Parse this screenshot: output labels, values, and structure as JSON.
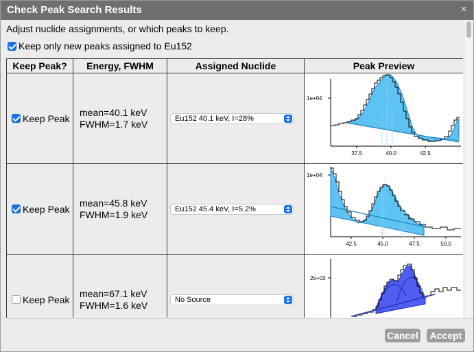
{
  "dialog": {
    "title": "Check Peak Search Results",
    "close_icon": "×",
    "instructions": "Adjust nuclide assignments, or which peaks to keep.",
    "keep_new_label": "Keep only new peaks assigned to Eu152",
    "keep_new_checked": true
  },
  "table": {
    "headers": [
      "Keep Peak?",
      "Energy, FWHM",
      "Assigned Nuclide",
      "Peak Preview"
    ],
    "rows": [
      {
        "keep_checked": true,
        "keep_label": "Keep Peak",
        "mean": "mean=40.1 keV",
        "fwhm": "FWHM=1.7 keV",
        "nuclide": "Eu152 40.1 keV, I=28%",
        "preview_ylabel": "1e+04",
        "preview_ticks": [
          "37.5",
          "40.0",
          "42.5"
        ]
      },
      {
        "keep_checked": true,
        "keep_label": "Keep Peak",
        "mean": "mean=45.8 keV",
        "fwhm": "FWHM=1.9 keV",
        "nuclide": "Eu152 45.4 keV, I=5.2%",
        "preview_ylabel": "1e+04",
        "preview_ticks": [
          "42.5",
          "45.0",
          "47.5",
          "50.0"
        ]
      },
      {
        "keep_checked": false,
        "keep_label": "Keep Peak",
        "mean": "mean=67.1 keV",
        "fwhm": "FWHM=1.6 keV",
        "nuclide": "No Source",
        "preview_ylabel": "2e+03",
        "preview_ticks": []
      }
    ]
  },
  "footer": {
    "cancel_label": "Cancel",
    "accept_label": "Accept"
  },
  "colors": {
    "titlebar": "#6f6f6f",
    "accent": "#1a73e8",
    "peak_fill_light": "#5ec3f2",
    "peak_fill_dark": "#4f5ef0",
    "button_gray": "#9d9d9d"
  }
}
